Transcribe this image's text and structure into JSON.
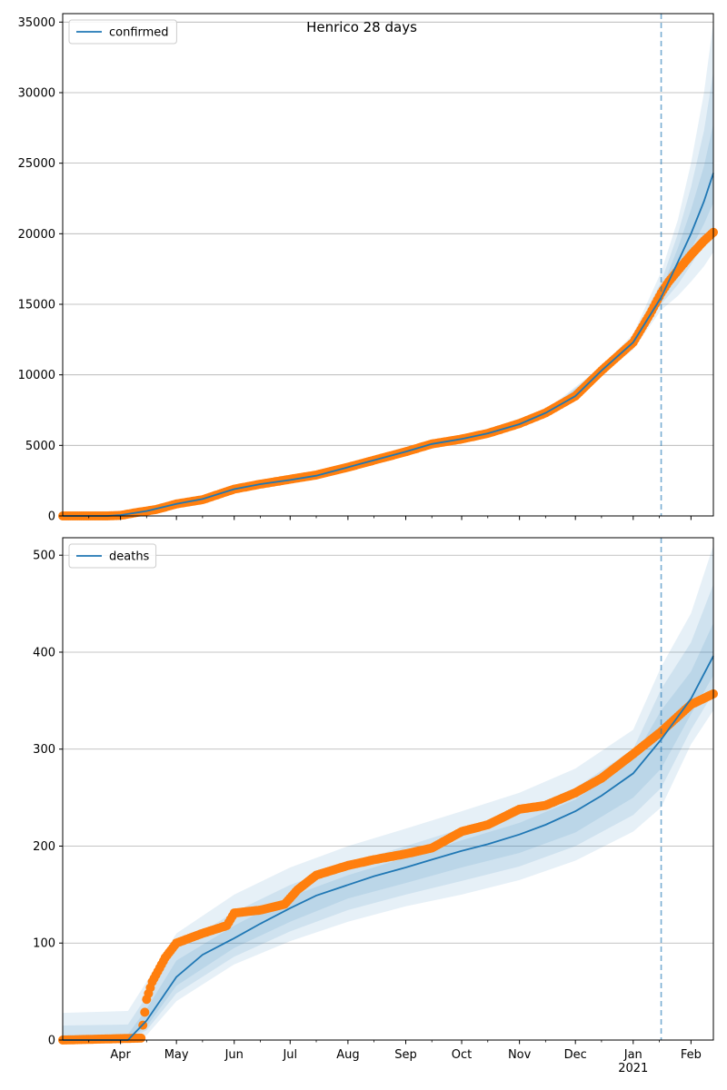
{
  "figure": {
    "title": "Henrico 28 days"
  },
  "chart_data": [
    {
      "type": "line",
      "panel": "top",
      "legend": {
        "entries": [
          "confirmed"
        ],
        "placement": "upper-left"
      },
      "x_axis": {
        "type": "date",
        "range": [
          "2020-03-01",
          "2021-02-13"
        ],
        "tick_labels": [
          {
            "date": "2020-04-01",
            "label": "Apr"
          },
          {
            "date": "2020-05-01",
            "label": "May"
          },
          {
            "date": "2020-06-01",
            "label": "Jun"
          },
          {
            "date": "2020-07-01",
            "label": "Jul"
          },
          {
            "date": "2020-08-01",
            "label": "Aug"
          },
          {
            "date": "2020-09-01",
            "label": "Sep"
          },
          {
            "date": "2020-10-01",
            "label": "Oct"
          },
          {
            "date": "2020-11-01",
            "label": "Nov"
          },
          {
            "date": "2020-12-01",
            "label": "Dec"
          },
          {
            "date": "2021-01-01",
            "label": "Jan\n2021"
          },
          {
            "date": "2021-02-01",
            "label": "Feb"
          }
        ],
        "tick_labels_visible": false
      },
      "y_axis": {
        "range": [
          0,
          35600
        ],
        "ticks": [
          0,
          5000,
          10000,
          15000,
          20000,
          25000,
          30000,
          35000
        ]
      },
      "grid": "horizontal",
      "forecast_start": "2021-01-16",
      "colors": {
        "model": "#1f77b4",
        "observed": "#ff7f0e",
        "band": "#1f77b4",
        "vline": "#1f77b4"
      },
      "series": [
        {
          "name": "confirmed",
          "kind": "model_line",
          "points": [
            [
              "2020-03-01",
              0
            ],
            [
              "2020-03-25",
              0
            ],
            [
              "2020-04-01",
              60
            ],
            [
              "2020-04-15",
              350
            ],
            [
              "2020-05-01",
              850
            ],
            [
              "2020-05-15",
              1200
            ],
            [
              "2020-06-01",
              1900
            ],
            [
              "2020-06-15",
              2250
            ],
            [
              "2020-07-01",
              2550
            ],
            [
              "2020-07-15",
              2850
            ],
            [
              "2020-08-01",
              3450
            ],
            [
              "2020-08-15",
              3950
            ],
            [
              "2020-09-01",
              4550
            ],
            [
              "2020-09-15",
              5100
            ],
            [
              "2020-10-01",
              5450
            ],
            [
              "2020-10-15",
              5850
            ],
            [
              "2020-11-01",
              6500
            ],
            [
              "2020-11-15",
              7300
            ],
            [
              "2020-12-01",
              8500
            ],
            [
              "2020-12-15",
              10300
            ],
            [
              "2021-01-01",
              12300
            ],
            [
              "2021-01-16",
              15500
            ],
            [
              "2021-01-25",
              18000
            ],
            [
              "2021-02-01",
              20000
            ],
            [
              "2021-02-08",
              22300
            ],
            [
              "2021-02-13",
              24300
            ]
          ]
        },
        {
          "name": "",
          "kind": "observed_points",
          "points": [
            [
              "2020-03-01",
              0
            ],
            [
              "2020-03-25",
              0
            ],
            [
              "2020-04-01",
              40
            ],
            [
              "2020-04-10",
              250
            ],
            [
              "2020-04-20",
              450
            ],
            [
              "2020-05-01",
              850
            ],
            [
              "2020-05-15",
              1150
            ],
            [
              "2020-06-01",
              1900
            ],
            [
              "2020-06-15",
              2250
            ],
            [
              "2020-07-01",
              2600
            ],
            [
              "2020-07-15",
              2900
            ],
            [
              "2020-08-01",
              3450
            ],
            [
              "2020-08-15",
              3950
            ],
            [
              "2020-09-01",
              4550
            ],
            [
              "2020-09-15",
              5100
            ],
            [
              "2020-10-01",
              5450
            ],
            [
              "2020-10-15",
              5850
            ],
            [
              "2020-11-01",
              6550
            ],
            [
              "2020-11-15",
              7300
            ],
            [
              "2020-12-01",
              8500
            ],
            [
              "2020-12-15",
              10300
            ],
            [
              "2021-01-01",
              12300
            ],
            [
              "2021-01-10",
              14300
            ],
            [
              "2021-01-16",
              15800
            ],
            [
              "2021-01-20",
              16600
            ],
            [
              "2021-01-25",
              17400
            ],
            [
              "2021-02-01",
              18500
            ],
            [
              "2021-02-08",
              19500
            ],
            [
              "2021-02-13",
              20100
            ]
          ]
        }
      ],
      "bands": [
        {
          "date": [
            "2020-03-01",
            "2020-03-25",
            "2020-04-15",
            "2020-06-01",
            "2020-08-01",
            "2020-10-01",
            "2020-11-15",
            "2020-12-15",
            "2021-01-01",
            "2021-01-16",
            "2021-01-25",
            "2021-02-01",
            "2021-02-08",
            "2021-02-13"
          ],
          "levels": [
            {
              "low": [
                0,
                0,
                300,
                1800,
                3300,
                5300,
                7100,
                10000,
                11800,
                14600,
                15600,
                16600,
                17700,
                18700
              ],
              "high": [
                0,
                0,
                420,
                2000,
                3600,
                5600,
                7500,
                10600,
                12900,
                17300,
                21000,
                25000,
                30000,
                35000
              ]
            },
            {
              "low": [
                0,
                0,
                320,
                1830,
                3350,
                5350,
                7170,
                10100,
                12000,
                15000,
                16400,
                17800,
                19300,
                20400
              ],
              "high": [
                0,
                0,
                400,
                1970,
                3550,
                5550,
                7430,
                10500,
                12700,
                16600,
                20000,
                23300,
                27300,
                31500
              ]
            },
            {
              "low": [
                0,
                0,
                335,
                1860,
                3400,
                5400,
                7230,
                10200,
                12150,
                15200,
                17200,
                18900,
                20700,
                22200
              ],
              "high": [
                0,
                0,
                380,
                1940,
                3500,
                5500,
                7370,
                10400,
                12500,
                16000,
                19000,
                21700,
                24800,
                27800
              ]
            }
          ]
        }
      ]
    },
    {
      "type": "line",
      "panel": "bottom",
      "legend": {
        "entries": [
          "deaths"
        ],
        "placement": "upper-left"
      },
      "x_axis": {
        "type": "date",
        "range": [
          "2020-03-01",
          "2021-02-13"
        ],
        "tick_labels": [
          {
            "date": "2020-04-01",
            "label": "Apr"
          },
          {
            "date": "2020-05-01",
            "label": "May"
          },
          {
            "date": "2020-06-01",
            "label": "Jun"
          },
          {
            "date": "2020-07-01",
            "label": "Jul"
          },
          {
            "date": "2020-08-01",
            "label": "Aug"
          },
          {
            "date": "2020-09-01",
            "label": "Sep"
          },
          {
            "date": "2020-10-01",
            "label": "Oct"
          },
          {
            "date": "2020-11-01",
            "label": "Nov"
          },
          {
            "date": "2020-12-01",
            "label": "Dec"
          },
          {
            "date": "2021-01-01",
            "label": "Jan\n2021"
          },
          {
            "date": "2021-02-01",
            "label": "Feb"
          }
        ],
        "tick_labels_visible": true
      },
      "y_axis": {
        "range": [
          0,
          518
        ],
        "ticks": [
          0,
          100,
          200,
          300,
          400,
          500
        ]
      },
      "grid": "horizontal",
      "forecast_start": "2021-01-16",
      "colors": {
        "model": "#1f77b4",
        "observed": "#ff7f0e",
        "band": "#1f77b4",
        "vline": "#1f77b4"
      },
      "series": [
        {
          "name": "deaths",
          "kind": "model_line",
          "points": [
            [
              "2020-03-01",
              0
            ],
            [
              "2020-04-05",
              0
            ],
            [
              "2020-04-15",
              20
            ],
            [
              "2020-05-01",
              65
            ],
            [
              "2020-05-15",
              88
            ],
            [
              "2020-06-01",
              105
            ],
            [
              "2020-06-15",
              120
            ],
            [
              "2020-07-01",
              136
            ],
            [
              "2020-07-15",
              149
            ],
            [
              "2020-08-01",
              160
            ],
            [
              "2020-08-15",
              169
            ],
            [
              "2020-09-01",
              178
            ],
            [
              "2020-09-15",
              186
            ],
            [
              "2020-10-01",
              195
            ],
            [
              "2020-10-15",
              202
            ],
            [
              "2020-11-01",
              212
            ],
            [
              "2020-11-15",
              222
            ],
            [
              "2020-12-01",
              236
            ],
            [
              "2020-12-15",
              252
            ],
            [
              "2021-01-01",
              275
            ],
            [
              "2021-01-16",
              310
            ],
            [
              "2021-02-01",
              352
            ],
            [
              "2021-02-13",
              396
            ]
          ]
        },
        {
          "name": "",
          "kind": "observed_points",
          "points": [
            [
              "2020-03-01",
              0
            ],
            [
              "2020-04-12",
              2
            ],
            [
              "2020-04-15",
              42
            ],
            [
              "2020-04-18",
              60
            ],
            [
              "2020-04-25",
              85
            ],
            [
              "2020-05-01",
              100
            ],
            [
              "2020-05-15",
              110
            ],
            [
              "2020-05-28",
              118
            ],
            [
              "2020-06-01",
              131
            ],
            [
              "2020-06-15",
              134
            ],
            [
              "2020-06-28",
              140
            ],
            [
              "2020-07-05",
              155
            ],
            [
              "2020-07-15",
              170
            ],
            [
              "2020-08-01",
              180
            ],
            [
              "2020-08-15",
              186
            ],
            [
              "2020-09-01",
              192
            ],
            [
              "2020-09-15",
              198
            ],
            [
              "2020-10-01",
              215
            ],
            [
              "2020-10-15",
              222
            ],
            [
              "2020-11-01",
              238
            ],
            [
              "2020-11-15",
              242
            ],
            [
              "2020-12-01",
              255
            ],
            [
              "2020-12-15",
              270
            ],
            [
              "2021-01-01",
              295
            ],
            [
              "2021-01-16",
              318
            ],
            [
              "2021-02-01",
              346
            ],
            [
              "2021-02-13",
              357
            ]
          ]
        }
      ],
      "bands": [
        {
          "date": [
            "2020-03-01",
            "2020-04-05",
            "2020-04-15",
            "2020-05-01",
            "2020-06-01",
            "2020-07-01",
            "2020-08-01",
            "2020-09-01",
            "2020-10-01",
            "2020-11-01",
            "2020-12-01",
            "2021-01-01",
            "2021-01-16",
            "2021-02-01",
            "2021-02-13"
          ],
          "levels": [
            {
              "low": [
                0,
                0,
                5,
                40,
                78,
                102,
                122,
                138,
                150,
                165,
                185,
                215,
                240,
                305,
                340
              ],
              "high": [
                28,
                30,
                60,
                110,
                150,
                178,
                200,
                218,
                236,
                255,
                280,
                320,
                385,
                440,
                510
              ]
            },
            {
              "low": [
                0,
                0,
                10,
                48,
                86,
                112,
                134,
                150,
                164,
                179,
                200,
                232,
                260,
                320,
                358
              ],
              "high": [
                15,
                16,
                45,
                95,
                132,
                160,
                182,
                200,
                218,
                236,
                260,
                300,
                362,
                410,
                470
              ]
            },
            {
              "low": [
                0,
                0,
                14,
                56,
                95,
                122,
                146,
                162,
                178,
                193,
                214,
                250,
                280,
                336,
                376
              ],
              "high": [
                5,
                6,
                32,
                82,
                118,
                148,
                170,
                188,
                206,
                224,
                248,
                290,
                340,
                380,
                430
              ]
            }
          ]
        }
      ]
    }
  ]
}
